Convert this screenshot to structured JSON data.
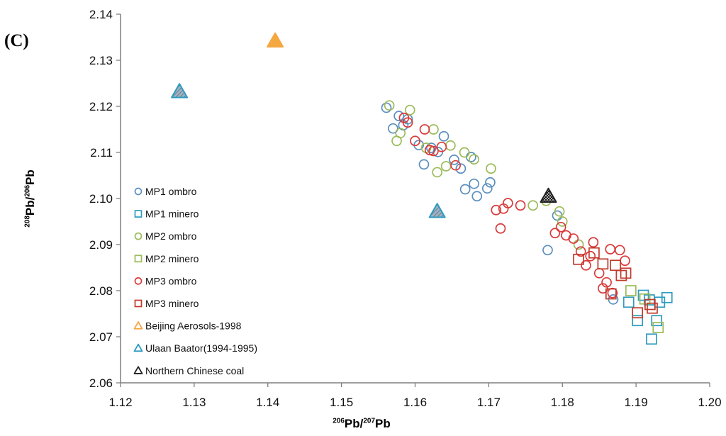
{
  "panel_label": "(C)",
  "axis_titles": {
    "x_sup1": "206",
    "x_base1": "Pb/",
    "x_sup2": "207",
    "x_base2": "Pb",
    "y_sup1": "208",
    "y_base1": "Pb/",
    "y_sup2": "206",
    "y_base2": "Pb"
  },
  "chart_data": {
    "type": "scatter",
    "xlabel": "206Pb/207Pb",
    "ylabel": "208Pb/206Pb",
    "xlim": [
      1.12,
      1.2
    ],
    "ylim": [
      2.06,
      2.14
    ],
    "xticks": [
      "1.12",
      "1.13",
      "1.14",
      "1.15",
      "1.16",
      "1.17",
      "1.18",
      "1.19",
      "1.20"
    ],
    "yticks": [
      "2.06",
      "2.07",
      "2.08",
      "2.09",
      "2.10",
      "2.11",
      "2.12",
      "2.13",
      "2.14"
    ],
    "legend_position": "left",
    "series": [
      {
        "name": "MP1 ombro",
        "marker": "circle",
        "color": "#5b8fbf",
        "points": [
          [
            1.1561,
            2.1197
          ],
          [
            1.157,
            2.1152
          ],
          [
            1.1578,
            2.1179
          ],
          [
            1.1584,
            2.1159
          ],
          [
            1.159,
            2.1172
          ],
          [
            1.1605,
            2.1116
          ],
          [
            1.1612,
            2.1074
          ],
          [
            1.1622,
            2.111
          ],
          [
            1.1631,
            2.1101
          ],
          [
            1.1639,
            2.1135
          ],
          [
            1.1653,
            2.1084
          ],
          [
            1.1662,
            2.1065
          ],
          [
            1.1668,
            2.102
          ],
          [
            1.1676,
            2.109
          ],
          [
            1.168,
            2.1032
          ],
          [
            1.1684,
            2.1005
          ],
          [
            1.1698,
            2.1022
          ],
          [
            1.1702,
            2.1035
          ],
          [
            1.178,
            2.0888
          ],
          [
            1.1793,
            2.0963
          ],
          [
            1.1869,
            2.0781
          ]
        ]
      },
      {
        "name": "MP1 minero",
        "marker": "square",
        "color": "#2e9bbf",
        "points": [
          [
            1.189,
            2.0775
          ],
          [
            1.1902,
            2.0735
          ],
          [
            1.191,
            2.079
          ],
          [
            1.1918,
            2.078
          ],
          [
            1.1921,
            2.0695
          ],
          [
            1.1928,
            2.0735
          ],
          [
            1.1932,
            2.0775
          ],
          [
            1.1942,
            2.0785
          ]
        ]
      },
      {
        "name": "MP2 ombro",
        "marker": "circle",
        "color": "#9bbb59",
        "points": [
          [
            1.1565,
            2.1202
          ],
          [
            1.1575,
            2.1125
          ],
          [
            1.158,
            2.1142
          ],
          [
            1.1593,
            2.1192
          ],
          [
            1.1615,
            2.111
          ],
          [
            1.1625,
            2.115
          ],
          [
            1.163,
            2.1057
          ],
          [
            1.1642,
            2.107
          ],
          [
            1.1648,
            2.1115
          ],
          [
            1.1667,
            2.11
          ],
          [
            1.168,
            2.1085
          ],
          [
            1.1703,
            2.1065
          ],
          [
            1.176,
            2.0985
          ],
          [
            1.1778,
            2.0995
          ],
          [
            1.1796,
            2.0972
          ],
          [
            1.18,
            2.095
          ],
          [
            1.1822,
            2.09
          ]
        ]
      },
      {
        "name": "MP2 minero",
        "marker": "square",
        "color": "#9bbb59",
        "points": [
          [
            1.1893,
            2.08
          ],
          [
            1.1912,
            2.0782
          ],
          [
            1.193,
            2.072
          ]
        ]
      },
      {
        "name": "MP3 ombro",
        "marker": "circle",
        "color": "#d93a3a",
        "points": [
          [
            1.1585,
            2.1175
          ],
          [
            1.159,
            2.1165
          ],
          [
            1.16,
            2.1125
          ],
          [
            1.1613,
            2.115
          ],
          [
            1.162,
            2.1105
          ],
          [
            1.1625,
            2.1103
          ],
          [
            1.1636,
            2.1112
          ],
          [
            1.1655,
            2.1072
          ],
          [
            1.171,
            2.0975
          ],
          [
            1.1716,
            2.0935
          ],
          [
            1.172,
            2.0978
          ],
          [
            1.1726,
            2.099
          ],
          [
            1.1743,
            2.0985
          ],
          [
            1.179,
            2.0925
          ],
          [
            1.1798,
            2.0938
          ],
          [
            1.1805,
            2.092
          ],
          [
            1.1815,
            2.0913
          ],
          [
            1.1825,
            2.0885
          ],
          [
            1.1832,
            2.0855
          ],
          [
            1.1838,
            2.0875
          ],
          [
            1.1842,
            2.0905
          ],
          [
            1.185,
            2.0838
          ],
          [
            1.1855,
            2.0805
          ],
          [
            1.186,
            2.0818
          ],
          [
            1.1865,
            2.089
          ],
          [
            1.1868,
            2.0795
          ],
          [
            1.1878,
            2.0888
          ],
          [
            1.1885,
            2.0865
          ]
        ]
      },
      {
        "name": "MP3 minero",
        "marker": "square",
        "color": "#c0392b",
        "points": [
          [
            1.1822,
            2.0868
          ],
          [
            1.1843,
            2.0882
          ],
          [
            1.1855,
            2.0858
          ],
          [
            1.1866,
            2.0793
          ],
          [
            1.1872,
            2.0855
          ],
          [
            1.188,
            2.0833
          ],
          [
            1.1886,
            2.0838
          ],
          [
            1.1902,
            2.0752
          ],
          [
            1.1919,
            2.077
          ],
          [
            1.1922,
            2.0762
          ]
        ]
      },
      {
        "name": "Beijing Aerosols-1998",
        "marker": "triangle",
        "color": "#f5a742",
        "points": [
          [
            1.141,
            2.1342
          ]
        ]
      },
      {
        "name": "Ulaan Baator(1994-1995)",
        "marker": "triangle",
        "color": "#2e9bbf",
        "points": [
          [
            1.128,
            2.1232
          ],
          [
            1.163,
            2.0972
          ]
        ]
      },
      {
        "name": "Northern Chinese coal",
        "marker": "triangle",
        "color": "#222222",
        "points": [
          [
            1.1781,
            2.1005
          ]
        ]
      }
    ]
  }
}
